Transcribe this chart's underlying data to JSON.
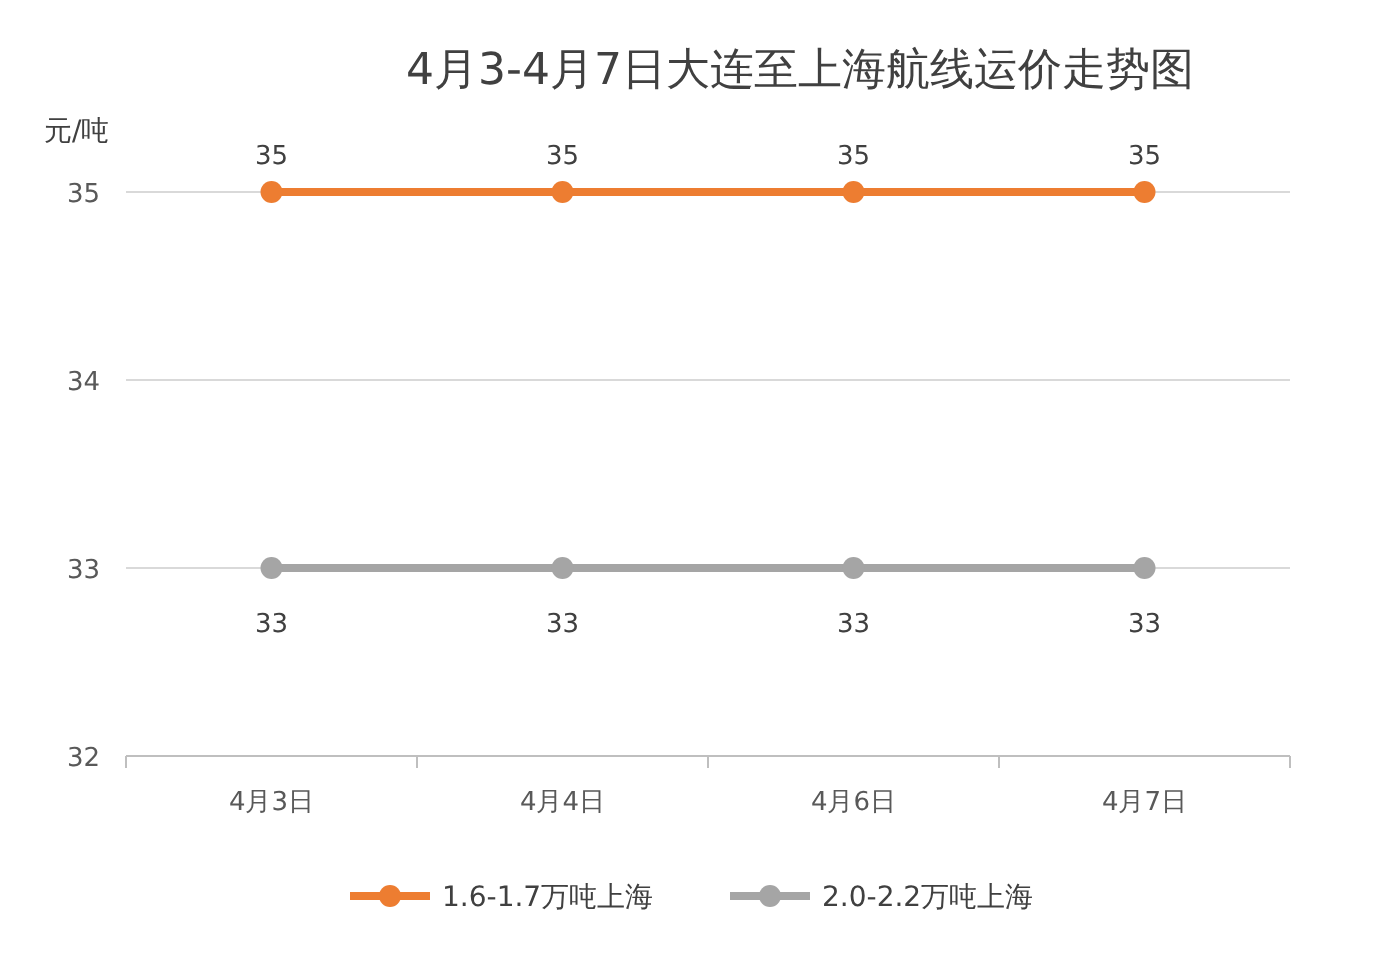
{
  "chart_data": {
    "type": "line",
    "title": "4月3-4月7日大连至上海航线运价走势图",
    "ylabel": "元/吨",
    "categories": [
      "4月3日",
      "4月4日",
      "4月6日",
      "4月7日"
    ],
    "series": [
      {
        "name": "1.6-1.7万吨上海",
        "color": "#ed7d31",
        "values": [
          35,
          35,
          35,
          35
        ]
      },
      {
        "name": "2.0-2.2万吨上海",
        "color": "#a5a5a5",
        "values": [
          33,
          33,
          33,
          33
        ]
      }
    ],
    "ylim": [
      32,
      35
    ],
    "yticks": [
      32,
      33,
      34,
      35
    ],
    "grid": "y",
    "legend": "bottom",
    "marker": "circle",
    "line_style": "solid",
    "data_labels": true
  }
}
